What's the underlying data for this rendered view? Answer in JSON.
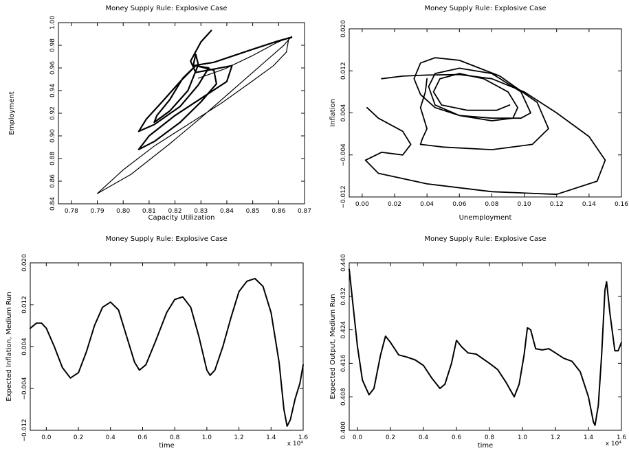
{
  "chart_data": [
    {
      "type": "line",
      "title": "Money Supply Rule: Explosive Case",
      "xlabel": "Capacity Utilization",
      "ylabel": "Employment",
      "xlim": [
        0.775,
        0.87
      ],
      "ylim": [
        0.84,
        1.0
      ],
      "xticks": [
        "0.78",
        "0.79",
        "0.80",
        "0.81",
        "0.82",
        "0.83",
        "0.84",
        "0.85",
        "0.86",
        "0.87"
      ],
      "yticks": [
        "0.84",
        "0.86",
        "0.88",
        "0.90",
        "0.92",
        "0.94",
        "0.96",
        "0.98",
        "1.00"
      ],
      "exponent_label": "",
      "series": [
        {
          "stroke": 1.2,
          "points": [
            [
              0.829,
              0.951
            ],
            [
              0.839,
              0.959
            ],
            [
              0.85,
              0.971
            ],
            [
              0.859,
              0.982
            ],
            [
              0.864,
              0.987
            ],
            [
              0.863,
              0.974
            ],
            [
              0.858,
              0.962
            ],
            [
              0.849,
              0.947
            ],
            [
              0.838,
              0.929
            ],
            [
              0.825,
              0.91
            ],
            [
              0.812,
              0.891
            ],
            [
              0.8,
              0.87
            ],
            [
              0.79,
              0.849
            ],
            [
              0.803,
              0.866
            ],
            [
              0.818,
              0.893
            ],
            [
              0.83,
              0.916
            ],
            [
              0.842,
              0.94
            ],
            [
              0.853,
              0.962
            ],
            [
              0.862,
              0.98
            ],
            [
              0.865,
              0.988
            ]
          ]
        },
        {
          "stroke": 2.2,
          "points": [
            [
              0.834,
              0.993
            ],
            [
              0.83,
              0.983
            ],
            [
              0.826,
              0.966
            ],
            [
              0.828,
              0.956
            ],
            [
              0.835,
              0.959
            ],
            [
              0.842,
              0.962
            ],
            [
              0.84,
              0.948
            ],
            [
              0.832,
              0.936
            ],
            [
              0.82,
              0.918
            ],
            [
              0.81,
              0.9
            ],
            [
              0.806,
              0.888
            ],
            [
              0.812,
              0.895
            ],
            [
              0.822,
              0.912
            ],
            [
              0.83,
              0.93
            ],
            [
              0.836,
              0.946
            ],
            [
              0.835,
              0.958
            ],
            [
              0.828,
              0.962
            ],
            [
              0.822,
              0.948
            ],
            [
              0.815,
              0.93
            ],
            [
              0.809,
              0.915
            ],
            [
              0.806,
              0.904
            ],
            [
              0.812,
              0.91
            ],
            [
              0.822,
              0.926
            ],
            [
              0.829,
              0.945
            ],
            [
              0.833,
              0.96
            ],
            [
              0.828,
              0.962
            ],
            [
              0.823,
              0.951
            ],
            [
              0.818,
              0.932
            ],
            [
              0.813,
              0.918
            ],
            [
              0.812,
              0.912
            ],
            [
              0.818,
              0.922
            ],
            [
              0.825,
              0.94
            ],
            [
              0.829,
              0.963
            ],
            [
              0.828,
              0.972
            ],
            [
              0.827,
              0.962
            ],
            [
              0.835,
              0.965
            ],
            [
              0.848,
              0.975
            ],
            [
              0.86,
              0.984
            ],
            [
              0.865,
              0.987
            ]
          ]
        }
      ]
    },
    {
      "type": "line",
      "title": "Money Supply Rule: Explosive Case",
      "xlabel": "Unemployment",
      "ylabel": "Inflation",
      "xlim": [
        -0.008,
        0.16
      ],
      "ylim": [
        -0.012,
        0.02
      ],
      "xticks": [
        "0.00",
        "0.02",
        "0.04",
        "0.06",
        "0.08",
        "0.10",
        "0.12",
        "0.14",
        "0.16"
      ],
      "yticks": [
        "−0.012",
        "−0.004",
        "0.004",
        "0.012",
        "0.020"
      ],
      "ytick_values": [
        -0.012,
        -0.004,
        0.004,
        0.012,
        0.02
      ],
      "exponent_label": "",
      "series": [
        {
          "stroke": 1.8,
          "points": [
            [
              0.012,
              0.0105
            ],
            [
              0.025,
              0.011
            ],
            [
              0.04,
              0.0112
            ],
            [
              0.06,
              0.0113
            ],
            [
              0.08,
              0.0105
            ],
            [
              0.1,
              0.008
            ],
            [
              0.12,
              0.004
            ],
            [
              0.14,
              -0.0005
            ],
            [
              0.15,
              -0.005
            ],
            [
              0.145,
              -0.009
            ],
            [
              0.12,
              -0.0115
            ],
            [
              0.08,
              -0.011
            ],
            [
              0.04,
              -0.0095
            ],
            [
              0.01,
              -0.0075
            ],
            [
              0.002,
              -0.005
            ],
            [
              0.012,
              -0.0035
            ],
            [
              0.025,
              -0.004
            ],
            [
              0.03,
              -0.002
            ],
            [
              0.025,
              0.0005
            ],
            [
              0.01,
              0.003
            ],
            [
              0.003,
              0.005
            ]
          ]
        },
        {
          "stroke": 1.8,
          "points": [
            [
              0.04,
              0.0105
            ],
            [
              0.039,
              0.008
            ],
            [
              0.036,
              0.005
            ],
            [
              0.038,
              0.003
            ],
            [
              0.04,
              0.001
            ],
            [
              0.037,
              -0.001
            ],
            [
              0.036,
              -0.002
            ],
            [
              0.05,
              -0.0025
            ],
            [
              0.08,
              -0.003
            ],
            [
              0.105,
              -0.002
            ],
            [
              0.115,
              0.001
            ],
            [
              0.108,
              0.006
            ],
            [
              0.085,
              0.011
            ],
            [
              0.06,
              0.014
            ],
            [
              0.045,
              0.0145
            ],
            [
              0.036,
              0.0135
            ],
            [
              0.032,
              0.0105
            ],
            [
              0.036,
              0.0075
            ],
            [
              0.045,
              0.005
            ],
            [
              0.06,
              0.0035
            ],
            [
              0.08,
              0.003
            ],
            [
              0.098,
              0.003
            ],
            [
              0.104,
              0.004
            ],
            [
              0.098,
              0.008
            ],
            [
              0.08,
              0.0115
            ],
            [
              0.06,
              0.0125
            ],
            [
              0.045,
              0.0115
            ],
            [
              0.041,
              0.009
            ],
            [
              0.045,
              0.0055
            ],
            [
              0.06,
              0.0035
            ],
            [
              0.08,
              0.0025
            ],
            [
              0.093,
              0.003
            ],
            [
              0.096,
              0.005
            ],
            [
              0.09,
              0.008
            ],
            [
              0.075,
              0.0105
            ],
            [
              0.06,
              0.0115
            ],
            [
              0.048,
              0.0105
            ],
            [
              0.044,
              0.008
            ],
            [
              0.049,
              0.0055
            ],
            [
              0.065,
              0.0045
            ],
            [
              0.083,
              0.0045
            ],
            [
              0.091,
              0.0055
            ]
          ]
        }
      ]
    },
    {
      "type": "line",
      "title": "Money Supply Rule: Explosive Case",
      "xlabel": "time",
      "ylabel": "Expected Inflation, Medium Run",
      "xlim": [
        -0.1,
        1.6
      ],
      "ylim": [
        -0.012,
        0.02
      ],
      "xticks": [
        "0.0",
        "0.2",
        "0.4",
        "0.6",
        "0.8",
        "1.0",
        "1.2",
        "1.4",
        "1.6"
      ],
      "yticks": [
        "−0.012",
        "−0.004",
        "0.004",
        "0.012",
        "0.020"
      ],
      "ytick_values": [
        -0.012,
        -0.004,
        0.004,
        0.012,
        0.02
      ],
      "exponent_label": "x 10⁴",
      "series": [
        {
          "stroke": 2.0,
          "points": [
            [
              -0.1,
              0.0075
            ],
            [
              -0.06,
              0.0085
            ],
            [
              -0.03,
              0.0085
            ],
            [
              0.0,
              0.0075
            ],
            [
              0.05,
              0.004
            ],
            [
              0.1,
              0.0
            ],
            [
              0.15,
              -0.002
            ],
            [
              0.2,
              -0.001
            ],
            [
              0.25,
              0.003
            ],
            [
              0.3,
              0.008
            ],
            [
              0.35,
              0.0115
            ],
            [
              0.4,
              0.0125
            ],
            [
              0.45,
              0.011
            ],
            [
              0.5,
              0.006
            ],
            [
              0.55,
              0.001
            ],
            [
              0.58,
              -0.0005
            ],
            [
              0.62,
              0.0005
            ],
            [
              0.68,
              0.005
            ],
            [
              0.75,
              0.0105
            ],
            [
              0.8,
              0.013
            ],
            [
              0.85,
              0.0135
            ],
            [
              0.9,
              0.0115
            ],
            [
              0.95,
              0.006
            ],
            [
              1.0,
              -0.0005
            ],
            [
              1.02,
              -0.0015
            ],
            [
              1.05,
              -0.0005
            ],
            [
              1.1,
              0.004
            ],
            [
              1.15,
              0.0095
            ],
            [
              1.2,
              0.0145
            ],
            [
              1.25,
              0.0165
            ],
            [
              1.3,
              0.017
            ],
            [
              1.35,
              0.0155
            ],
            [
              1.4,
              0.0105
            ],
            [
              1.45,
              0.001
            ],
            [
              1.48,
              -0.008
            ],
            [
              1.5,
              -0.0112
            ],
            [
              1.52,
              -0.01
            ],
            [
              1.55,
              -0.006
            ],
            [
              1.58,
              -0.003
            ],
            [
              1.6,
              0.0005
            ]
          ]
        }
      ]
    },
    {
      "type": "line",
      "title": "Money Supply Rule: Explosive Case",
      "xlabel": "time",
      "ylabel": "Expected Output, Medium Run",
      "xlim": [
        -0.05,
        1.6
      ],
      "ylim": [
        0.4,
        0.44
      ],
      "xticks": [
        "0.0",
        "0.2",
        "0.4",
        "0.6",
        "0.8",
        "1.0",
        "1.2",
        "1.4",
        "1.6"
      ],
      "yticks": [
        "0.400",
        "0.408",
        "0.416",
        "0.424",
        "0.432",
        "0.440"
      ],
      "ytick_values": [
        0.4,
        0.408,
        0.416,
        0.424,
        0.432,
        0.44
      ],
      "exponent_label": "x 10⁴",
      "series": [
        {
          "stroke": 2.0,
          "points": [
            [
              -0.05,
              0.4385
            ],
            [
              -0.03,
              0.431
            ],
            [
              0.0,
              0.42
            ],
            [
              0.03,
              0.412
            ],
            [
              0.07,
              0.4085
            ],
            [
              0.1,
              0.41
            ],
            [
              0.14,
              0.418
            ],
            [
              0.17,
              0.4225
            ],
            [
              0.2,
              0.421
            ],
            [
              0.25,
              0.418
            ],
            [
              0.3,
              0.4175
            ],
            [
              0.35,
              0.4168
            ],
            [
              0.4,
              0.4155
            ],
            [
              0.45,
              0.4125
            ],
            [
              0.5,
              0.41
            ],
            [
              0.53,
              0.411
            ],
            [
              0.57,
              0.416
            ],
            [
              0.6,
              0.4215
            ],
            [
              0.63,
              0.42
            ],
            [
              0.67,
              0.4185
            ],
            [
              0.72,
              0.4182
            ],
            [
              0.8,
              0.416
            ],
            [
              0.85,
              0.4145
            ],
            [
              0.9,
              0.4115
            ],
            [
              0.95,
              0.408
            ],
            [
              0.98,
              0.411
            ],
            [
              1.01,
              0.418
            ],
            [
              1.03,
              0.4245
            ],
            [
              1.05,
              0.424
            ],
            [
              1.08,
              0.4195
            ],
            [
              1.12,
              0.4192
            ],
            [
              1.16,
              0.4195
            ],
            [
              1.2,
              0.4185
            ],
            [
              1.25,
              0.4172
            ],
            [
              1.3,
              0.4165
            ],
            [
              1.35,
              0.414
            ],
            [
              1.4,
              0.408
            ],
            [
              1.43,
              0.402
            ],
            [
              1.44,
              0.4012
            ],
            [
              1.46,
              0.406
            ],
            [
              1.48,
              0.418
            ],
            [
              1.5,
              0.4335
            ],
            [
              1.51,
              0.4355
            ],
            [
              1.53,
              0.428
            ],
            [
              1.56,
              0.419
            ],
            [
              1.58,
              0.419
            ],
            [
              1.6,
              0.421
            ]
          ]
        }
      ]
    }
  ]
}
